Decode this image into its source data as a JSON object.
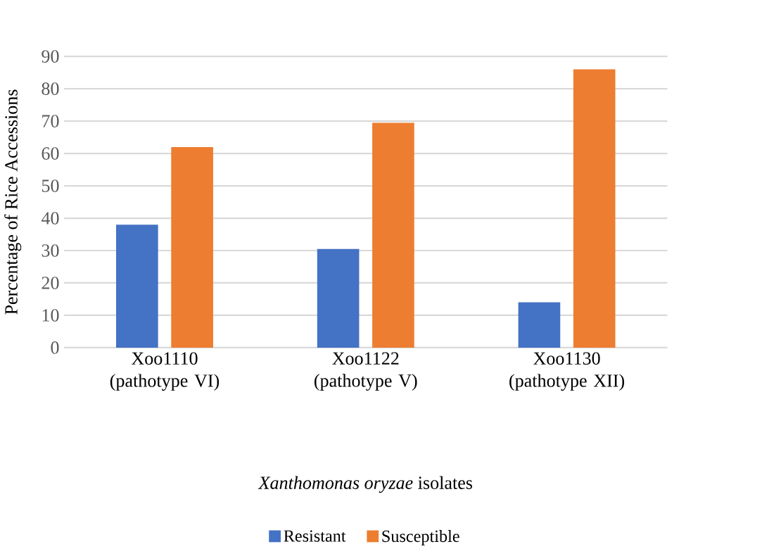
{
  "chart_data": {
    "type": "bar",
    "xlabel": "*Xanthomonas oryzae* isolates",
    "ylabel": "Percentage of Rice Accessions",
    "categories": [
      "Xoo1110 (pathotype VI)",
      "Xoo1122 (pathotype V)",
      "Xoo1130 (pathotype XII)"
    ],
    "series": [
      {
        "name": "Resistant",
        "color": "#4472c4",
        "values": [
          38,
          30.5,
          14
        ]
      },
      {
        "name": "Susceptible",
        "color": "#ed7d31",
        "values": [
          62,
          69.5,
          86
        ]
      }
    ],
    "ylim": [
      0,
      90
    ],
    "yticks": [
      0,
      10,
      20,
      30,
      40,
      50,
      60,
      70,
      80,
      90
    ],
    "grid": "y",
    "legend": "bottom"
  }
}
